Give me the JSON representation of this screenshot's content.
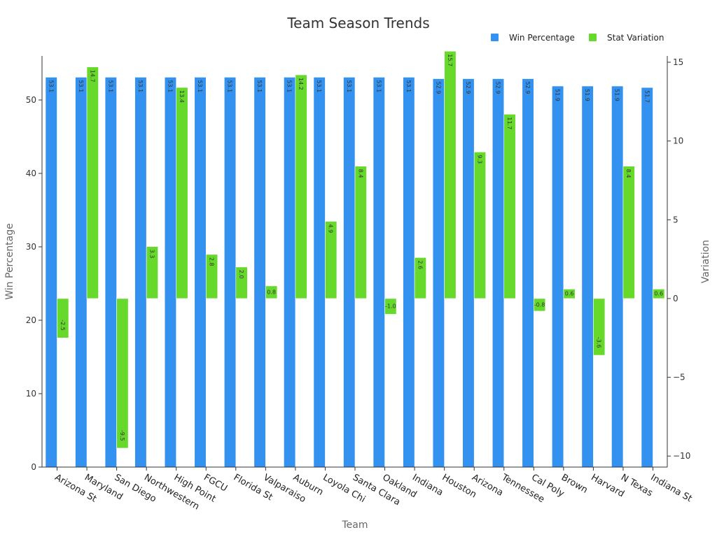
{
  "chart_data": {
    "type": "bar",
    "title": "Team Season Trends",
    "xlabel": "Team",
    "ylabel": "Win Percentage",
    "y2label": "Variation",
    "categories": [
      "Arizona St",
      "Maryland",
      "San Diego",
      "Northwestern",
      "High Point",
      "FGCU",
      "Florida St",
      "Valparaiso",
      "Auburn",
      "Loyola Chi",
      "Santa Clara",
      "Oakland",
      "Indiana",
      "Houston",
      "Arizona",
      "Tennessee",
      "Cal Poly",
      "Brown",
      "Harvard",
      "N Texas",
      "Indiana St"
    ],
    "series": [
      {
        "name": "Win Percentage",
        "axis": "left",
        "color": "#3391f0",
        "values": [
          53.1,
          53.1,
          53.1,
          53.1,
          53.1,
          53.1,
          53.1,
          53.1,
          53.1,
          53.1,
          53.1,
          53.1,
          53.1,
          52.9,
          52.9,
          52.9,
          52.9,
          51.9,
          51.9,
          51.9,
          51.7
        ]
      },
      {
        "name": "Stat Variation",
        "axis": "right",
        "color": "#66d92a",
        "values": [
          -2.5,
          14.7,
          -9.5,
          3.3,
          13.4,
          2.8,
          2.0,
          0.8,
          14.2,
          4.9,
          8.4,
          -1.0,
          2.6,
          15.7,
          9.3,
          11.7,
          -0.8,
          0.6,
          -3.6,
          8.4,
          0.6
        ]
      }
    ],
    "ylim": [
      0,
      56
    ],
    "y_ticks": [
      0,
      10,
      20,
      30,
      40,
      50
    ],
    "y2lim": [
      -10.7,
      15.4
    ],
    "y2_ticks": [
      -10,
      -5,
      0,
      5,
      10,
      15
    ],
    "y2_tick_labels": [
      "−10",
      "−5",
      "0",
      "5",
      "10",
      "15"
    ],
    "legend_position": "top-right",
    "grid": false
  }
}
